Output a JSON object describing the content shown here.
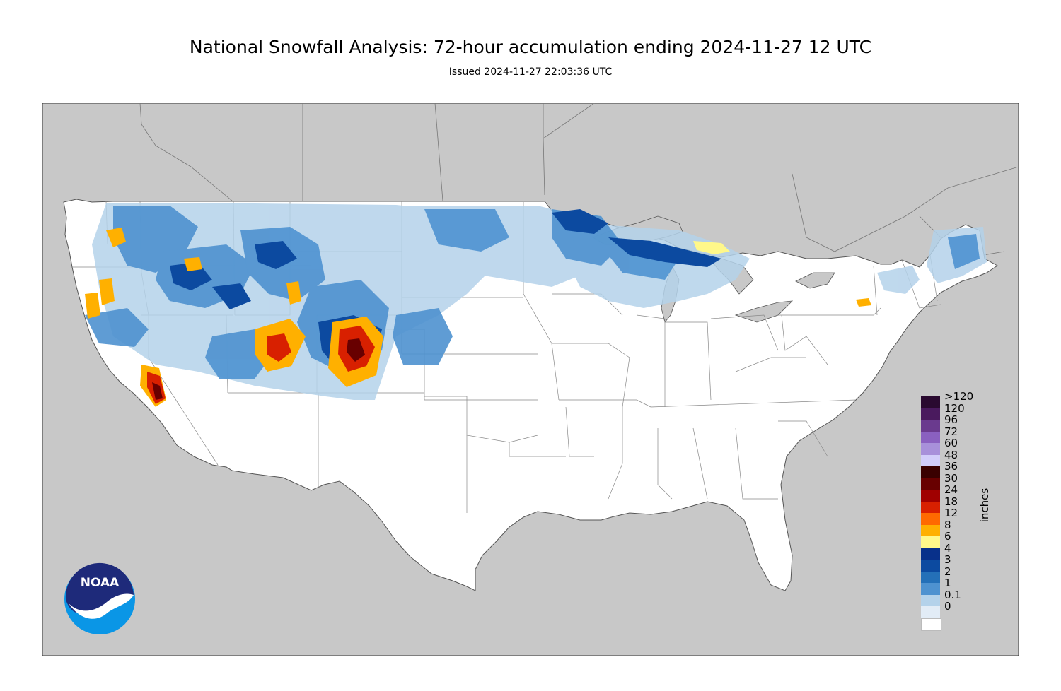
{
  "header": {
    "title": "National Snowfall Analysis: 72-hour accumulation ending 2024-11-27 12 UTC",
    "issued": "Issued 2024-11-27 22:03:36 UTC"
  },
  "legend": {
    "units": "inches",
    "levels": [
      {
        "label": ">120",
        "color": "#2a0a30"
      },
      {
        "label": "120",
        "color": "#4a1a5e"
      },
      {
        "label": "96",
        "color": "#6a3a8e"
      },
      {
        "label": "72",
        "color": "#8a60c0"
      },
      {
        "label": "60",
        "color": "#a890da"
      },
      {
        "label": "48",
        "color": "#d2cdfa"
      },
      {
        "label": "36",
        "color": "#3a0000"
      },
      {
        "label": "30",
        "color": "#680000"
      },
      {
        "label": "24",
        "color": "#a00000"
      },
      {
        "label": "18",
        "color": "#d82000"
      },
      {
        "label": "12",
        "color": "#ff6a00"
      },
      {
        "label": "8",
        "color": "#ffb000"
      },
      {
        "label": "6",
        "color": "#fff88a"
      },
      {
        "label": "4",
        "color": "#08308a"
      },
      {
        "label": "3",
        "color": "#0c4aa0"
      },
      {
        "label": "2",
        "color": "#2470b8"
      },
      {
        "label": "1",
        "color": "#4e92d0"
      },
      {
        "label": "0.1",
        "color": "#b4d2ea"
      },
      {
        "label": "0",
        "color": "#e2ecf6"
      },
      {
        "label": "",
        "color": "#ffffff"
      }
    ]
  },
  "logo": {
    "text": "NOAA"
  },
  "colors": {
    "land_outside": "#c8c8c8",
    "water": "#c8c8c8",
    "conus": "#ffffff",
    "border": "#666666"
  }
}
